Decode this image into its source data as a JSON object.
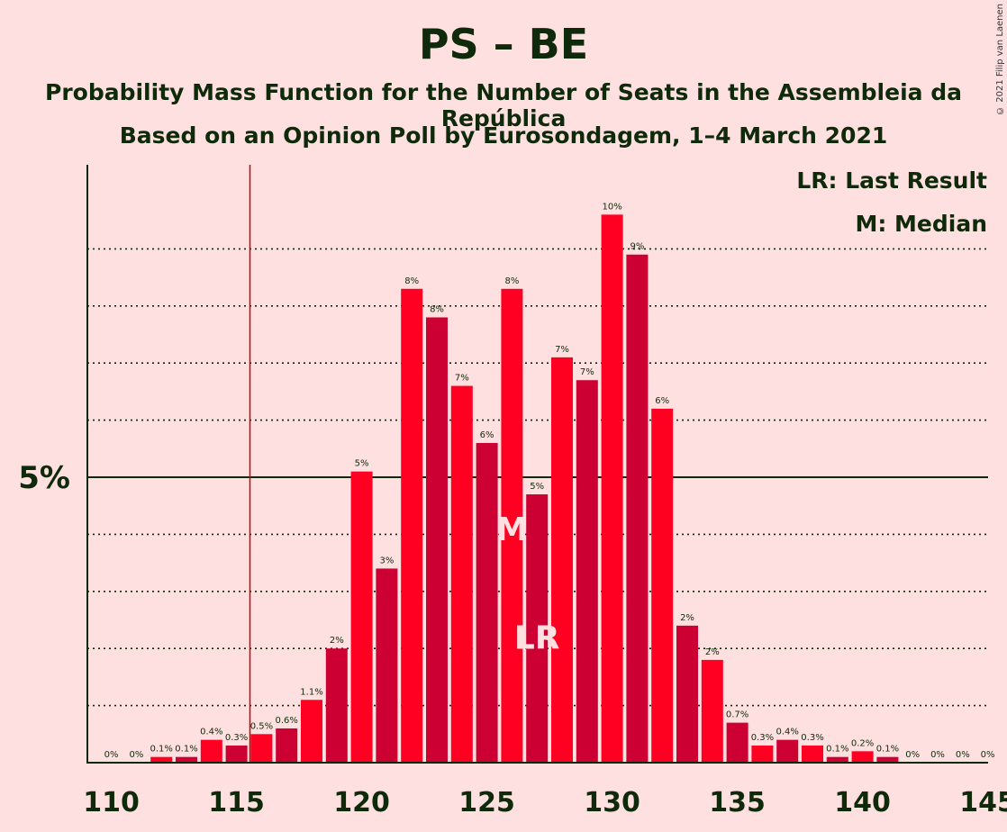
{
  "header": {
    "title": "PS – BE",
    "subtitle": "Probability Mass Function for the Number of Seats in the Assembleia da República",
    "source": "Based on an Opinion Poll by Eurosondagem, 1–4 March 2021",
    "copyright": "© 2021 Filip van Laenen"
  },
  "chart_data": {
    "type": "bar",
    "x": [
      110,
      111,
      112,
      113,
      114,
      115,
      116,
      117,
      118,
      119,
      120,
      121,
      122,
      123,
      124,
      125,
      126,
      127,
      128,
      129,
      130,
      131,
      132,
      133,
      134,
      135,
      136,
      137,
      138,
      139,
      140,
      141,
      142,
      143,
      144,
      145
    ],
    "values": [
      0,
      0,
      0.1,
      0.1,
      0.4,
      0.3,
      0.5,
      0.6,
      1.1,
      2.0,
      5.1,
      3.4,
      8.3,
      7.8,
      6.6,
      5.6,
      8.3,
      4.7,
      7.1,
      6.7,
      9.6,
      8.9,
      6.2,
      2.4,
      1.8,
      0.7,
      0.3,
      0.4,
      0.3,
      0.1,
      0.2,
      0.1,
      0,
      0,
      0,
      0
    ],
    "labels": [
      "0%",
      "0%",
      "0.1%",
      "0.1%",
      "0.4%",
      "0.3%",
      "0.5%",
      "0.6%",
      "1.1%",
      "2%",
      "5%",
      "3%",
      "8%",
      "8%",
      "7%",
      "6%",
      "8%",
      "5%",
      "7%",
      "7%",
      "10%",
      "9%",
      "6%",
      "2%",
      "2%",
      "0.7%",
      "0.3%",
      "0.4%",
      "0.3%",
      "0.1%",
      "0.2%",
      "0.1%",
      "0%",
      "0%",
      "0%",
      "0%"
    ],
    "xticks": [
      "110",
      "115",
      "120",
      "125",
      "130",
      "135",
      "140",
      "145"
    ],
    "ytick_label": "5%",
    "ylim": [
      0,
      10.5
    ],
    "last_result": 116,
    "last_result_label": "LR",
    "median": 126,
    "median_label": "M",
    "legend": [
      "LR: Last Result",
      "M: Median"
    ],
    "colors": {
      "bar_a": "#FF0022",
      "bar_b": "#CC0033",
      "text": "#0F2A0A",
      "lr_line": "#CC0000",
      "marker": "#FFE0E0"
    }
  }
}
